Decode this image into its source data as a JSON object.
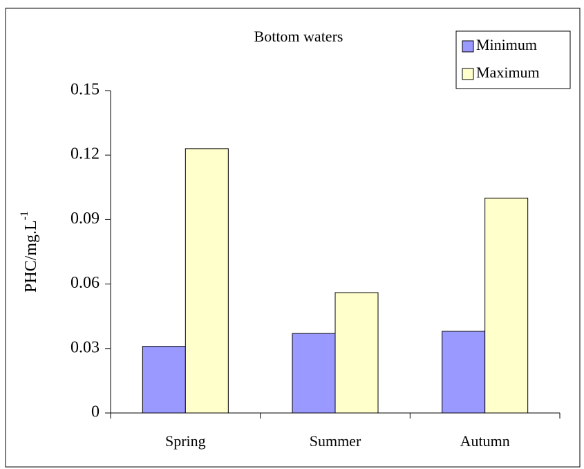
{
  "chart_data": {
    "type": "bar",
    "title": "Bottom waters",
    "y_label": {
      "text": "PHC/mg.L",
      "superscript": "-1"
    },
    "categories": [
      "Spring",
      "Summer",
      "Autumn"
    ],
    "series": [
      {
        "name": "Minimum",
        "color": "#9999ff",
        "values": [
          0.031,
          0.037,
          0.038
        ]
      },
      {
        "name": "Maximum",
        "color": "#ffffcc",
        "values": [
          0.123,
          0.056,
          0.1
        ]
      }
    ],
    "ylim": [
      0,
      0.15
    ],
    "yticks": [
      0,
      0.03,
      0.06,
      0.09,
      0.12,
      0.15
    ],
    "grid": false,
    "legend": "upper right"
  }
}
